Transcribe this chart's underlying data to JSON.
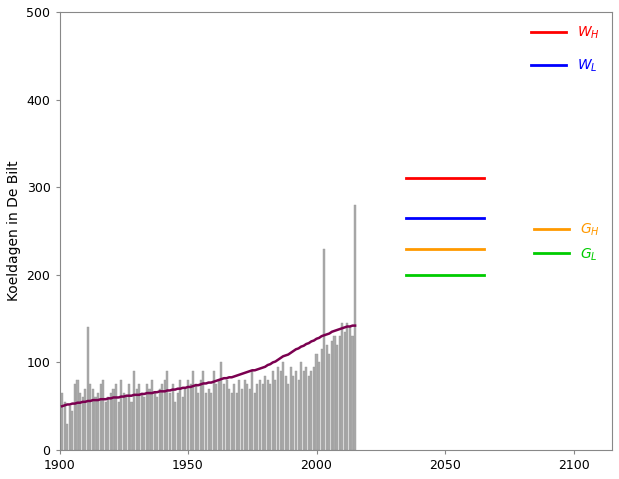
{
  "ylabel": "Koeldagen in De Bilt",
  "xlim": [
    1900,
    2115
  ],
  "ylim": [
    0,
    500
  ],
  "yticks": [
    0,
    100,
    200,
    300,
    400,
    500
  ],
  "xticks": [
    1900,
    1950,
    2000,
    2050,
    2100
  ],
  "bar_color": "#aaaaaa",
  "trend_color": "#7b0050",
  "background_color": "#ffffff",
  "legend_W_H_color": "#ff0000",
  "legend_W_L_color": "#0000ff",
  "legend_G_H_color": "#ff9900",
  "legend_G_L_color": "#00cc00",
  "scenario_lines": [
    {
      "y": 310,
      "color": "#ff0000",
      "x_start": 2035,
      "x_end": 2065
    },
    {
      "y": 265,
      "color": "#0000ff",
      "x_start": 2035,
      "x_end": 2065
    },
    {
      "y": 230,
      "color": "#ff9900",
      "x_start": 2035,
      "x_end": 2065
    },
    {
      "y": 200,
      "color": "#00cc00",
      "x_start": 2035,
      "x_end": 2065
    }
  ],
  "years": [
    1901,
    1902,
    1903,
    1904,
    1905,
    1906,
    1907,
    1908,
    1909,
    1910,
    1911,
    1912,
    1913,
    1914,
    1915,
    1916,
    1917,
    1918,
    1919,
    1920,
    1921,
    1922,
    1923,
    1924,
    1925,
    1926,
    1927,
    1928,
    1929,
    1930,
    1931,
    1932,
    1933,
    1934,
    1935,
    1936,
    1937,
    1938,
    1939,
    1940,
    1941,
    1942,
    1943,
    1944,
    1945,
    1946,
    1947,
    1948,
    1949,
    1950,
    1951,
    1952,
    1953,
    1954,
    1955,
    1956,
    1957,
    1958,
    1959,
    1960,
    1961,
    1962,
    1963,
    1964,
    1965,
    1966,
    1967,
    1968,
    1969,
    1970,
    1971,
    1972,
    1973,
    1974,
    1975,
    1976,
    1977,
    1978,
    1979,
    1980,
    1981,
    1982,
    1983,
    1984,
    1985,
    1986,
    1987,
    1988,
    1989,
    1990,
    1991,
    1992,
    1993,
    1994,
    1995,
    1996,
    1997,
    1998,
    1999,
    2000,
    2001,
    2002,
    2003,
    2004,
    2005,
    2006,
    2007,
    2008,
    2009,
    2010,
    2011,
    2012,
    2013,
    2014,
    2015
  ],
  "values": [
    65,
    55,
    30,
    50,
    45,
    75,
    80,
    65,
    60,
    70,
    140,
    75,
    70,
    60,
    65,
    75,
    80,
    55,
    60,
    65,
    70,
    75,
    55,
    80,
    65,
    60,
    75,
    55,
    90,
    70,
    75,
    65,
    60,
    75,
    70,
    80,
    65,
    60,
    70,
    75,
    80,
    90,
    65,
    75,
    55,
    65,
    80,
    60,
    70,
    80,
    75,
    90,
    75,
    65,
    80,
    90,
    65,
    70,
    65,
    90,
    75,
    80,
    100,
    75,
    80,
    70,
    65,
    75,
    65,
    80,
    70,
    80,
    75,
    70,
    90,
    65,
    75,
    80,
    75,
    85,
    80,
    75,
    90,
    80,
    95,
    90,
    100,
    85,
    75,
    95,
    85,
    90,
    80,
    100,
    90,
    95,
    85,
    90,
    95,
    110,
    100,
    115,
    230,
    120,
    110,
    125,
    130,
    120,
    130,
    145,
    135,
    145,
    140,
    130,
    280
  ],
  "trend": [
    50,
    51,
    52,
    52,
    53,
    53,
    54,
    54,
    55,
    55,
    56,
    56,
    57,
    57,
    57,
    58,
    58,
    58,
    59,
    59,
    60,
    60,
    60,
    61,
    61,
    62,
    62,
    62,
    63,
    63,
    63,
    64,
    64,
    65,
    65,
    65,
    66,
    66,
    67,
    67,
    67,
    68,
    68,
    69,
    69,
    70,
    70,
    71,
    71,
    72,
    72,
    73,
    74,
    74,
    75,
    76,
    76,
    77,
    77,
    78,
    79,
    80,
    81,
    82,
    82,
    83,
    83,
    84,
    85,
    86,
    87,
    88,
    89,
    90,
    91,
    91,
    92,
    93,
    94,
    95,
    97,
    98,
    100,
    101,
    103,
    105,
    107,
    108,
    109,
    111,
    113,
    115,
    116,
    118,
    119,
    121,
    122,
    124,
    125,
    127,
    128,
    130,
    131,
    132,
    133,
    135,
    136,
    137,
    138,
    139,
    140,
    141,
    141,
    142,
    142
  ]
}
